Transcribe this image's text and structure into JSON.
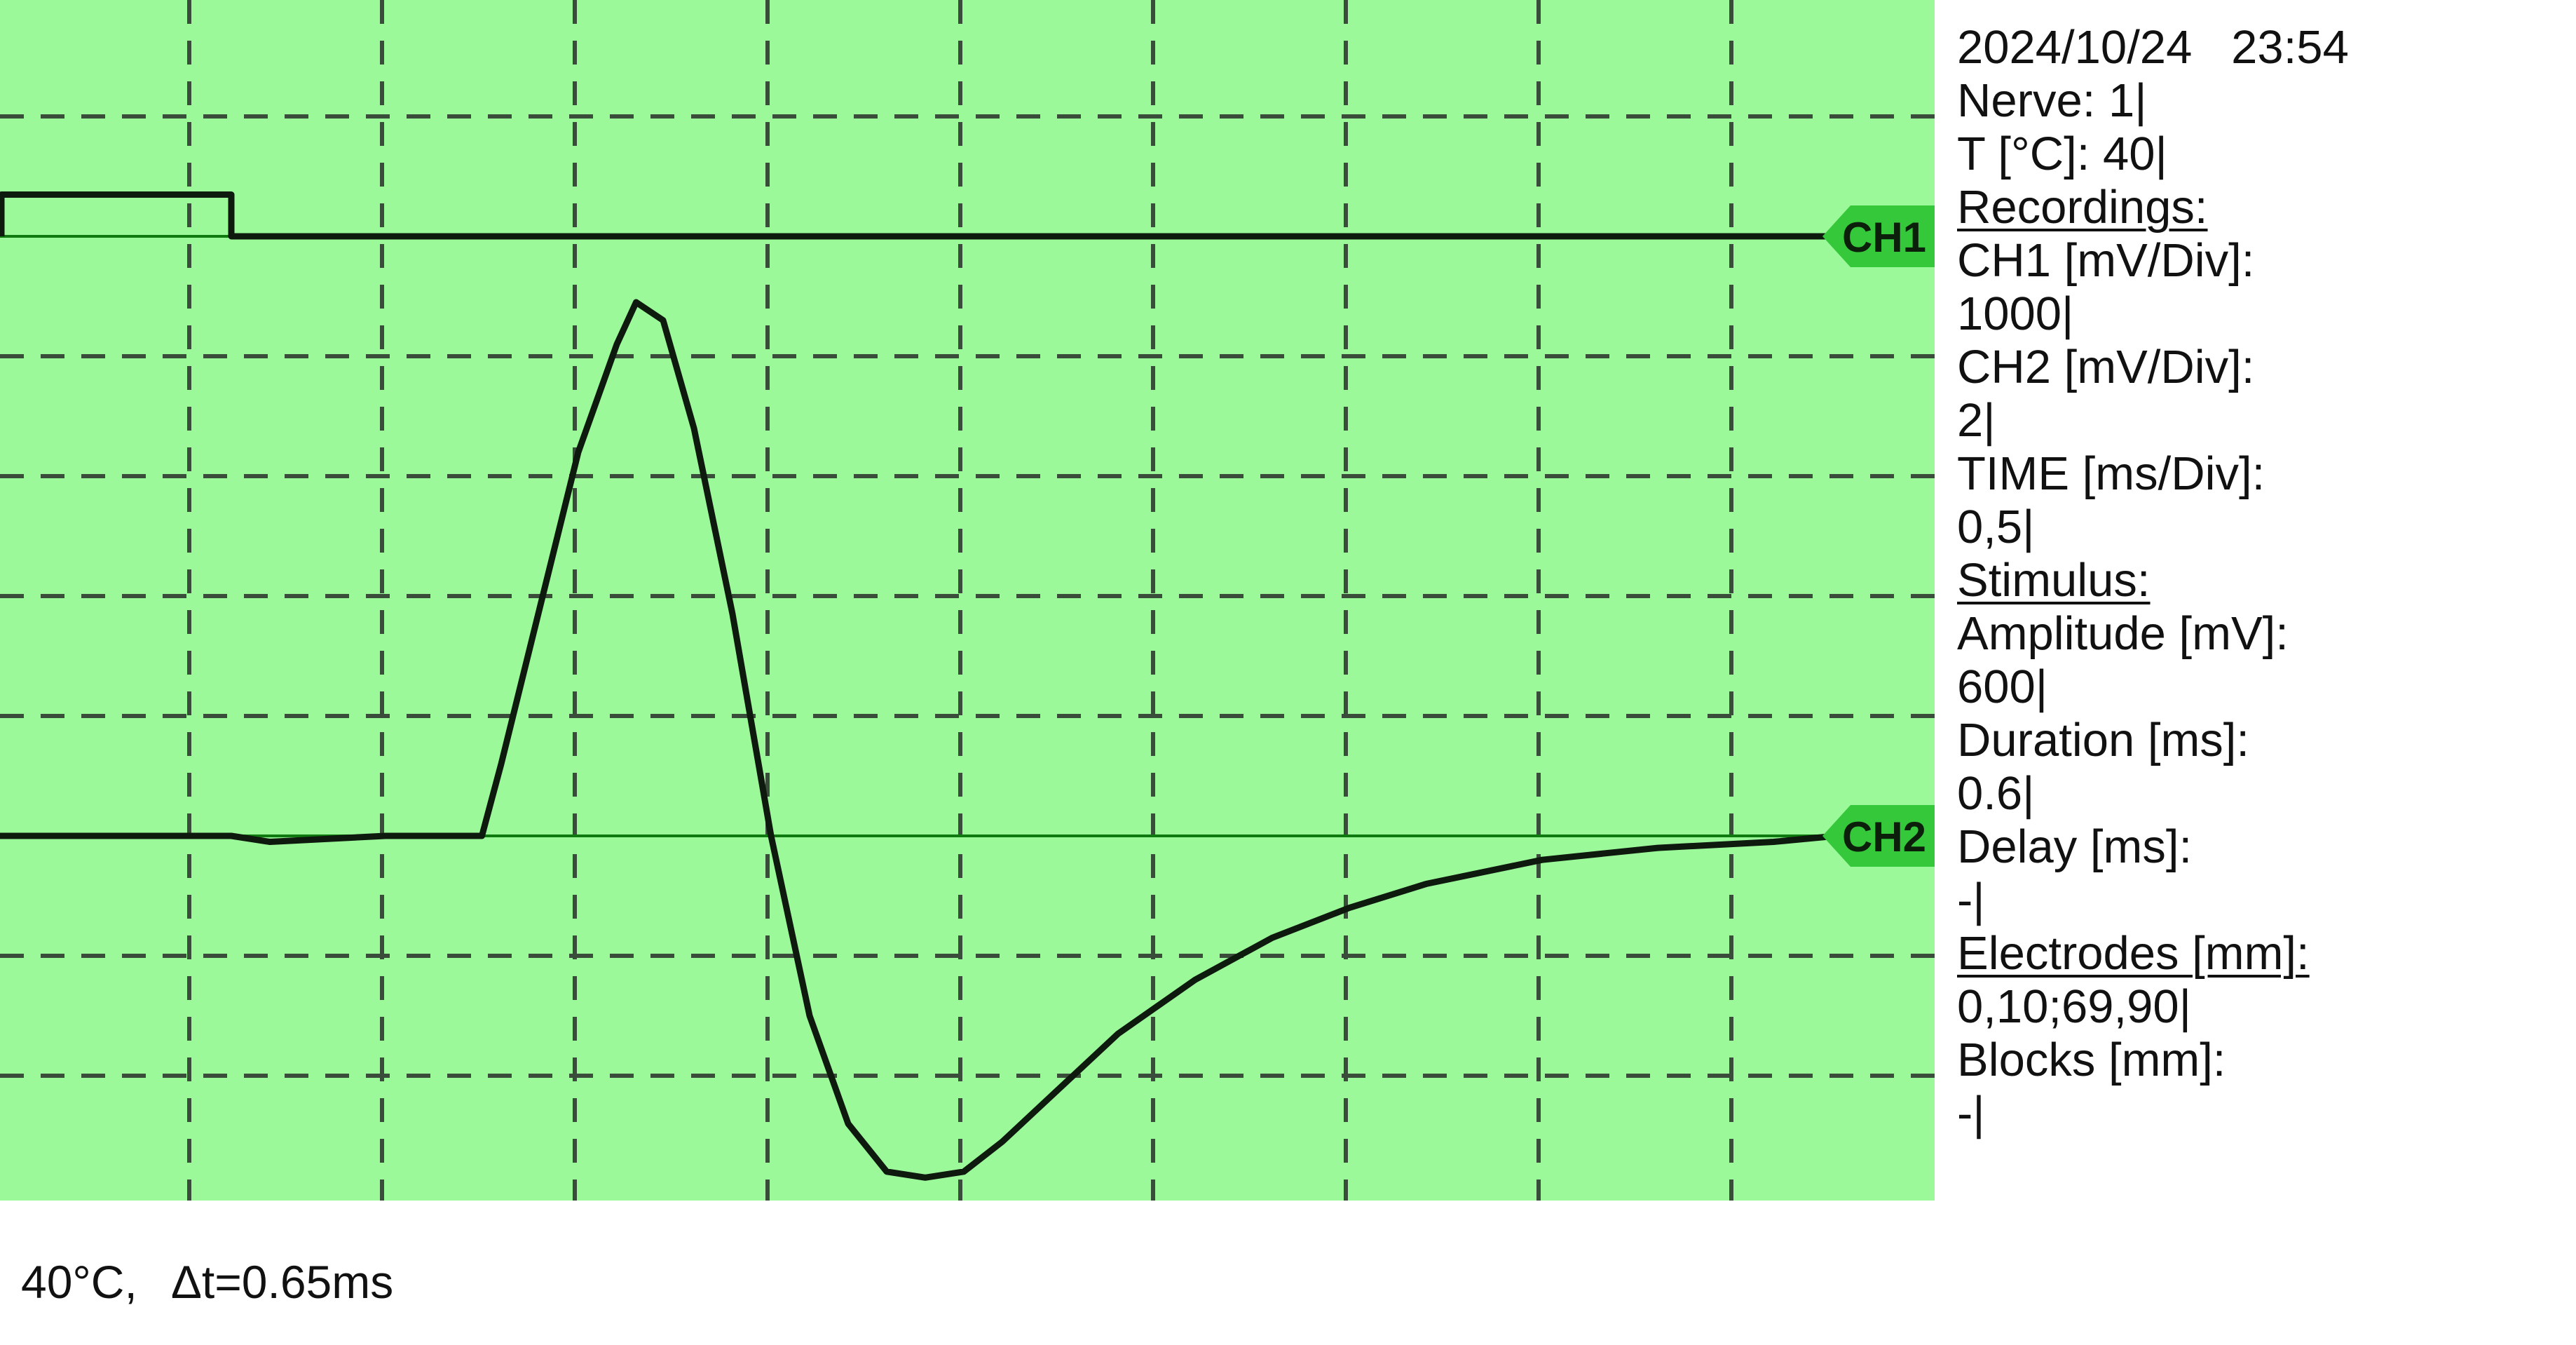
{
  "colors": {
    "screen": "#9cf99a",
    "grid": "#3a4d3a",
    "trace": "#0f1a0f",
    "baseline": "#0f7a0f",
    "marker": "#35c83a",
    "marker_text": "#0b1f0b"
  },
  "markers": {
    "ch1": "CH1",
    "ch2": "CH2"
  },
  "info": {
    "datetime": "2024/10/24   23:54",
    "nerve": "Nerve: 1|",
    "temp": "T [°C]: 40|",
    "recordings": "Recordings:",
    "ch1_label": "CH1 [mV/Div]:",
    "ch1_value": "1000|",
    "ch2_label": "CH2 [mV/Div]:",
    "ch2_value": "2|",
    "time_label": "TIME [ms/Div]:",
    "time_value": "0,5|",
    "stimulus": "Stimulus:",
    "amp_label": "Amplitude [mV]:",
    "amp_value": "600|",
    "dur_label": "Duration [ms]:",
    "dur_value": "0.6|",
    "delay_label": "Delay [ms]:",
    "delay_value": "-|",
    "electrodes": "Electrodes [mm]:",
    "electrodes_value": "0,10;69,90|",
    "blocks_label": "Blocks [mm]:",
    "blocks_value": "-|"
  },
  "caption": {
    "temp": "40°C,",
    "delta": "Δt=0.65ms"
  },
  "chart_data": {
    "type": "line",
    "grid": true,
    "time_per_div_ms": 0.5,
    "series": [
      {
        "name": "CH1",
        "units_per_div": 1000,
        "x": [
          0,
          0.6,
          0.6,
          5.0
        ],
        "y": [
          600,
          600,
          0,
          0
        ]
      },
      {
        "name": "CH2",
        "units_per_div": 2,
        "x": [
          0,
          0.3,
          0.6,
          0.7,
          1.0,
          1.25,
          1.3,
          1.4,
          1.5,
          1.6,
          1.65,
          1.72,
          1.8,
          1.9,
          2.0,
          2.1,
          2.2,
          2.3,
          2.4,
          2.5,
          2.6,
          2.75,
          2.9,
          3.1,
          3.3,
          3.5,
          3.7,
          4.0,
          4.3,
          4.6,
          4.8
        ],
        "y": [
          0.0,
          0.0,
          0.0,
          -0.1,
          0.0,
          0.0,
          1.2,
          3.8,
          6.4,
          8.2,
          8.9,
          8.6,
          6.8,
          3.7,
          0.0,
          -3.0,
          -4.8,
          -5.6,
          -5.7,
          -5.6,
          -5.1,
          -4.2,
          -3.3,
          -2.4,
          -1.7,
          -1.2,
          -0.8,
          -0.4,
          -0.2,
          -0.1,
          0.0
        ]
      }
    ]
  }
}
